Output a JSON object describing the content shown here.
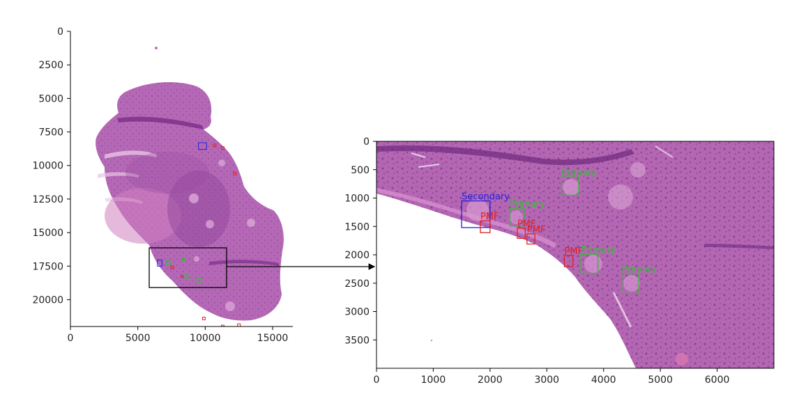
{
  "chart_data": [
    {
      "type": "image",
      "panel": "overview",
      "title": "",
      "xlabel": "",
      "ylabel": "",
      "xlim": [
        0,
        16500
      ],
      "ylim": [
        22000,
        0
      ],
      "xticks": [
        0,
        5000,
        10000,
        15000
      ],
      "yticks": [
        0,
        2500,
        5000,
        7500,
        10000,
        12500,
        15000,
        17500,
        20000
      ],
      "grid": false,
      "inset_region": {
        "x": [
          5800,
          11500
        ],
        "y": [
          16200,
          19100
        ]
      },
      "markers": [
        {
          "class": "Secondary",
          "color": "#2020e0",
          "x": [
            9500,
            10100
          ],
          "y": [
            8300,
            8800
          ]
        },
        {
          "class": "PMF",
          "color": "#e02020",
          "x": [
            10600,
            10800
          ],
          "y": [
            8400,
            8600
          ]
        },
        {
          "class": "PMF",
          "color": "#e02020",
          "x": [
            11200,
            11400
          ],
          "y": [
            8600,
            8800
          ]
        },
        {
          "class": "PMF",
          "color": "#e02020",
          "x": [
            12100,
            12300
          ],
          "y": [
            10500,
            10700
          ]
        },
        {
          "class": "Secondary",
          "color": "#2020e0",
          "x": [
            6450,
            6800
          ],
          "y": [
            17050,
            17500
          ]
        },
        {
          "class": "Primary",
          "color": "#30c030",
          "x": [
            7100,
            7400
          ],
          "y": [
            17100,
            17400
          ]
        },
        {
          "class": "PMF",
          "color": "#e02020",
          "x": [
            7450,
            7650
          ],
          "y": [
            17500,
            17700
          ]
        },
        {
          "class": "Primary",
          "color": "#30c030",
          "x": [
            8300,
            8500
          ],
          "y": [
            16900,
            17100
          ]
        },
        {
          "class": "Primary",
          "color": "#30c030",
          "x": [
            8500,
            8800
          ],
          "y": [
            18100,
            18400
          ]
        },
        {
          "class": "PMF",
          "color": "#e02020",
          "x": [
            8200,
            8350
          ],
          "y": [
            18200,
            18350
          ]
        },
        {
          "class": "Primary",
          "color": "#30c030",
          "x": [
            9400,
            9700
          ],
          "y": [
            18400,
            18700
          ]
        },
        {
          "class": "PMF",
          "color": "#e02020",
          "x": [
            9800,
            10000
          ],
          "y": [
            21300,
            21500
          ]
        },
        {
          "class": "PMF",
          "color": "#e02020",
          "x": [
            11200,
            11400
          ],
          "y": [
            21900,
            22000
          ]
        },
        {
          "class": "PMF",
          "color": "#e02020",
          "x": [
            12400,
            12600
          ],
          "y": [
            21800,
            22000
          ]
        }
      ]
    },
    {
      "type": "image",
      "panel": "zoom",
      "title": "",
      "xlabel": "",
      "ylabel": "",
      "xlim": [
        0,
        7000
      ],
      "ylim": [
        4000,
        0
      ],
      "xticks": [
        0,
        1000,
        2000,
        3000,
        4000,
        5000,
        6000
      ],
      "yticks": [
        0,
        500,
        1000,
        1500,
        2000,
        2500,
        3000,
        3500
      ],
      "grid": false,
      "detections": [
        {
          "class": "Secondary",
          "label": "Secondary",
          "color": "#2020e0",
          "x": [
            1500,
            2000
          ],
          "y": [
            1050,
            1520
          ]
        },
        {
          "class": "Primary",
          "label": "Primary",
          "color": "#30c030",
          "x": [
            2350,
            2600
          ],
          "y": [
            1180,
            1490
          ]
        },
        {
          "class": "Primary",
          "label": "Primary",
          "color": "#30c030",
          "x": [
            3260,
            3560
          ],
          "y": [
            630,
            950
          ]
        },
        {
          "class": "PMF",
          "label": "PMF",
          "color": "#e02020",
          "x": [
            1830,
            2000
          ],
          "y": [
            1400,
            1610
          ]
        },
        {
          "class": "PMF",
          "label": "PMF",
          "color": "#e02020",
          "x": [
            2480,
            2620
          ],
          "y": [
            1530,
            1710
          ]
        },
        {
          "class": "PMF",
          "label": "PMF",
          "color": "#e02020",
          "x": [
            2650,
            2790
          ],
          "y": [
            1630,
            1810
          ]
        },
        {
          "class": "PMF",
          "label": "PMF",
          "color": "#e02020",
          "x": [
            3310,
            3460
          ],
          "y": [
            2010,
            2210
          ]
        },
        {
          "class": "Primary",
          "label": "Primary",
          "color": "#30c030",
          "x": [
            3600,
            3900
          ],
          "y": [
            1990,
            2330
          ]
        },
        {
          "class": "Primary",
          "label": "Primary",
          "color": "#30c030",
          "x": [
            4320,
            4620
          ],
          "y": [
            2330,
            2680
          ]
        }
      ]
    }
  ],
  "colors": {
    "tissue": "#b366b3",
    "tissue_dark": "#8c3e96",
    "tissue_light": "#cf86c4",
    "background": "#ffffff"
  }
}
